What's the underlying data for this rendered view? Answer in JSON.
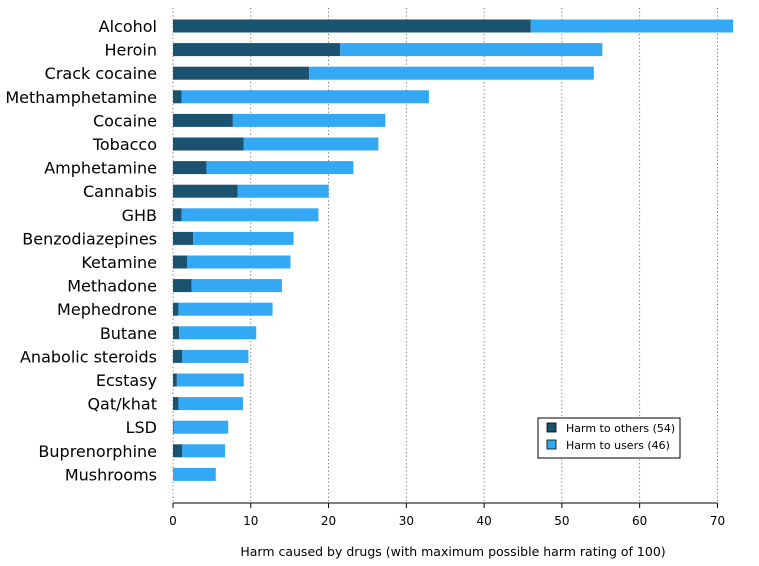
{
  "chart_data": {
    "type": "bar",
    "orientation": "horizontal",
    "stacked": true,
    "categories": [
      "Alcohol",
      "Heroin",
      "Crack cocaine",
      "Methamphetamine",
      "Cocaine",
      "Tobacco",
      "Amphetamine",
      "Cannabis",
      "GHB",
      "Benzodiazepines",
      "Ketamine",
      "Methadone",
      "Mephedrone",
      "Butane",
      "Anabolic steroids",
      "Ecstasy",
      "Qat/khat",
      "LSD",
      "Buprenorphine",
      "Mushrooms"
    ],
    "series": [
      {
        "name": "Harm to others (54)",
        "color": "#1a5270",
        "values": [
          46,
          21.5,
          17.5,
          1.1,
          7.7,
          9.1,
          4.3,
          8.3,
          1.1,
          2.6,
          1.8,
          2.4,
          0.7,
          0.8,
          1.2,
          0.5,
          0.7,
          0.1,
          1.2,
          0
        ]
      },
      {
        "name": "Harm to users (46)",
        "color": "#33a8f5",
        "values": [
          26,
          33.7,
          36.6,
          31.8,
          19.6,
          17.3,
          18.9,
          11.7,
          17.6,
          12.9,
          13.3,
          11.6,
          12.1,
          9.9,
          8.5,
          8.6,
          8.3,
          7.0,
          5.5,
          5.5
        ]
      }
    ],
    "xlabel": "Harm caused by drugs (with maximum possible harm rating of 100)",
    "ylabel": "",
    "xlim": [
      0,
      72
    ],
    "xticks": [
      0,
      10,
      20,
      30,
      40,
      50,
      60,
      70
    ],
    "grid": "vertical dotted lines at major ticks",
    "legend_position": "bottom-right"
  }
}
